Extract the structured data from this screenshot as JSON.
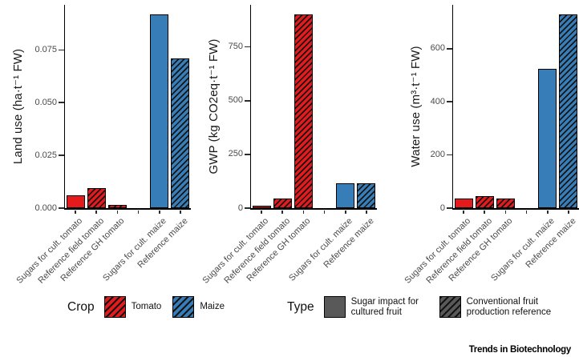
{
  "colors": {
    "tomato": "#E41A1C",
    "maize": "#377EB8",
    "type_gray": "#595959",
    "hatch_line": "#141414",
    "bar_border": "#000000",
    "axis_line": "#000000",
    "axis_text": "#4a4a4a",
    "axis_title": "#1a1a1a"
  },
  "chart_data": [
    {
      "type": "bar",
      "title": "",
      "ylabel": "Land use (ha·t⁻¹ FW)",
      "xlabel": "",
      "ylim": [
        0,
        0.0965
      ],
      "grid": false,
      "x_slots": 6,
      "empty_slot": 3,
      "yticks": [
        {
          "value": 0,
          "label": "0.000"
        },
        {
          "value": 0.025,
          "label": "0.025"
        },
        {
          "value": 0.05,
          "label": "0.050"
        },
        {
          "value": 0.075,
          "label": "0.075"
        }
      ],
      "bars": [
        {
          "slot": 0,
          "category": "Sugars for cult. tomato",
          "crop": "tomato",
          "pattern": "solid",
          "value": 0.006
        },
        {
          "slot": 1,
          "category": "Reference field tomato",
          "crop": "tomato",
          "pattern": "hatched",
          "value": 0.0095
        },
        {
          "slot": 2,
          "category": "Reference GH tomato",
          "crop": "tomato",
          "pattern": "hatched",
          "value": 0.0015
        },
        {
          "slot": 4,
          "category": "Sugars for cult. maize",
          "crop": "maize",
          "pattern": "solid",
          "value": 0.092
        },
        {
          "slot": 5,
          "category": "Reference maize",
          "crop": "maize",
          "pattern": "hatched",
          "value": 0.071
        }
      ]
    },
    {
      "type": "bar",
      "title": "",
      "ylabel": "GWP (kg CO2eq·t⁻¹ FW)",
      "xlabel": "",
      "ylim": [
        0,
        945
      ],
      "grid": false,
      "x_slots": 6,
      "empty_slot": 3,
      "yticks": [
        {
          "value": 0,
          "label": "0"
        },
        {
          "value": 250,
          "label": "250"
        },
        {
          "value": 500,
          "label": "500"
        },
        {
          "value": 750,
          "label": "750"
        }
      ],
      "bars": [
        {
          "slot": 0,
          "category": "Sugars for cult. tomato",
          "crop": "tomato",
          "pattern": "solid",
          "value": 10
        },
        {
          "slot": 1,
          "category": "Reference field tomato",
          "crop": "tomato",
          "pattern": "hatched",
          "value": 45
        },
        {
          "slot": 2,
          "category": "Reference GH tomato",
          "crop": "tomato",
          "pattern": "hatched",
          "value": 900
        },
        {
          "slot": 4,
          "category": "Sugars for cult. maize",
          "crop": "maize",
          "pattern": "solid",
          "value": 115
        },
        {
          "slot": 5,
          "category": "Reference maize",
          "crop": "maize",
          "pattern": "hatched",
          "value": 115
        }
      ]
    },
    {
      "type": "bar",
      "title": "",
      "ylabel": "Water use (m³·t⁻¹ FW)",
      "xlabel": "",
      "ylim": [
        0,
        765
      ],
      "grid": false,
      "x_slots": 6,
      "empty_slot": 3,
      "yticks": [
        {
          "value": 0,
          "label": "0"
        },
        {
          "value": 200,
          "label": "200"
        },
        {
          "value": 400,
          "label": "400"
        },
        {
          "value": 600,
          "label": "600"
        }
      ],
      "bars": [
        {
          "slot": 0,
          "category": "Sugars for cult. tomato",
          "crop": "tomato",
          "pattern": "solid",
          "value": 35
        },
        {
          "slot": 1,
          "category": "Reference field tomato",
          "crop": "tomato",
          "pattern": "hatched",
          "value": 45
        },
        {
          "slot": 2,
          "category": "Reference GH tomato",
          "crop": "tomato",
          "pattern": "hatched",
          "value": 35
        },
        {
          "slot": 4,
          "category": "Sugars for cult. maize",
          "crop": "maize",
          "pattern": "solid",
          "value": 525
        },
        {
          "slot": 5,
          "category": "Reference maize",
          "crop": "maize",
          "pattern": "hatched",
          "value": 730
        }
      ]
    }
  ],
  "legend": {
    "crop": {
      "title": "Crop",
      "items": [
        {
          "label": "Tomato",
          "color_key": "tomato",
          "pattern": "hatched"
        },
        {
          "label": "Maize",
          "color_key": "maize",
          "pattern": "hatched"
        }
      ]
    },
    "type": {
      "title": "Type",
      "items": [
        {
          "label": "Sugar impact for cultured fruit",
          "color_key": "type_gray",
          "pattern": "solid"
        },
        {
          "label": "Conventional fruit production reference",
          "color_key": "type_gray",
          "pattern": "hatched"
        }
      ]
    }
  },
  "footer": {
    "brand": "Trends in Biotechnology"
  }
}
